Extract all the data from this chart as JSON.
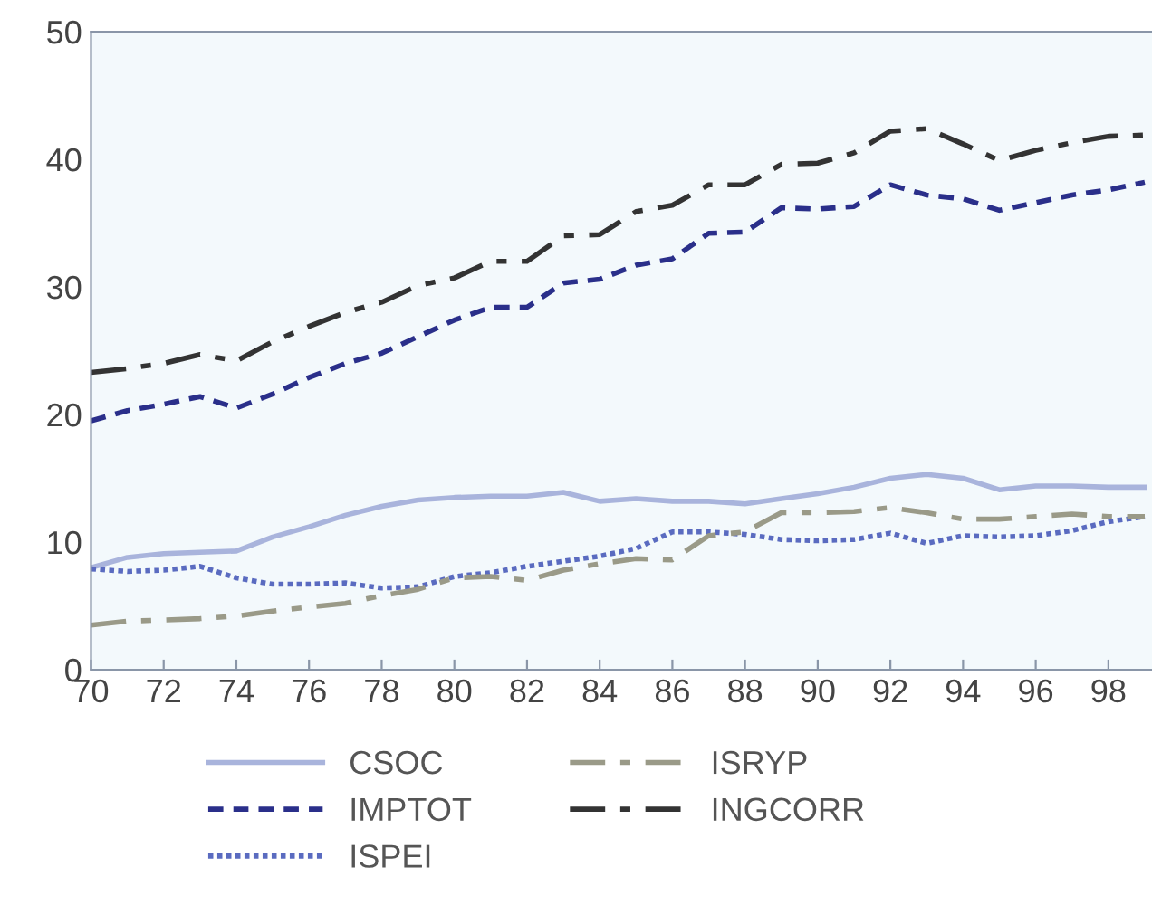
{
  "chart_data": {
    "type": "line",
    "x": [
      70,
      71,
      72,
      73,
      74,
      75,
      76,
      77,
      78,
      79,
      80,
      81,
      82,
      83,
      84,
      85,
      86,
      87,
      88,
      89,
      90,
      91,
      92,
      93,
      94,
      95,
      96,
      97,
      98,
      99
    ],
    "series": [
      {
        "name": "CSOC",
        "color": "#a9b4dc",
        "line_style": "solid",
        "values": [
          8.0,
          8.8,
          9.1,
          9.2,
          9.3,
          10.4,
          11.2,
          12.1,
          12.8,
          13.3,
          13.5,
          13.6,
          13.6,
          13.9,
          13.2,
          13.4,
          13.2,
          13.2,
          13.0,
          13.4,
          13.8,
          14.3,
          15.0,
          15.3,
          15.0,
          14.1,
          14.4,
          14.4,
          14.3,
          14.3
        ]
      },
      {
        "name": "IMPTOT",
        "color": "#2a2f8a",
        "line_style": "dashed",
        "values": [
          19.5,
          20.3,
          20.8,
          21.4,
          20.5,
          21.6,
          22.9,
          24.0,
          24.8,
          26.1,
          27.4,
          28.4,
          28.4,
          30.3,
          30.6,
          31.7,
          32.2,
          34.2,
          34.3,
          36.2,
          36.1,
          36.3,
          38.0,
          37.2,
          36.9,
          36.0,
          36.6,
          37.2,
          37.6,
          38.2
        ]
      },
      {
        "name": "ISPEI",
        "color": "#5a6bc0",
        "line_style": "dotted",
        "values": [
          7.9,
          7.7,
          7.8,
          8.1,
          7.2,
          6.7,
          6.7,
          6.8,
          6.4,
          6.5,
          7.3,
          7.6,
          8.1,
          8.5,
          8.9,
          9.5,
          10.8,
          10.8,
          10.6,
          10.2,
          10.1,
          10.2,
          10.7,
          9.9,
          10.5,
          10.4,
          10.5,
          10.9,
          11.6,
          12.0
        ]
      },
      {
        "name": "ISRYP",
        "color": "#9a9a88",
        "line_style": "dashdot",
        "values": [
          3.5,
          3.8,
          3.9,
          4.0,
          4.2,
          4.6,
          4.9,
          5.2,
          5.8,
          6.3,
          7.2,
          7.3,
          7.0,
          7.8,
          8.3,
          8.7,
          8.6,
          10.5,
          10.8,
          12.3,
          12.3,
          12.4,
          12.7,
          12.3,
          11.8,
          11.8,
          12.0,
          12.2,
          12.0,
          12.0
        ]
      },
      {
        "name": "INGCORR",
        "color": "#333333",
        "line_style": "dashdot",
        "values": [
          23.3,
          23.6,
          24.0,
          24.7,
          24.2,
          25.7,
          26.9,
          28.0,
          28.8,
          30.1,
          30.7,
          32.0,
          32.0,
          34.0,
          34.1,
          35.9,
          36.4,
          38.0,
          38.0,
          39.6,
          39.7,
          40.5,
          42.2,
          42.4,
          41.2,
          39.9,
          40.7,
          41.3,
          41.8,
          41.9
        ]
      }
    ],
    "xlim": [
      70,
      99.2
    ],
    "xticks": [
      70,
      72,
      74,
      76,
      78,
      80,
      82,
      84,
      86,
      88,
      90,
      92,
      94,
      96,
      98
    ],
    "ylim": [
      0,
      50
    ],
    "yticks": [
      0,
      10,
      20,
      30,
      40,
      50
    ],
    "grid": false,
    "legend": "bottom",
    "marker": "none"
  }
}
